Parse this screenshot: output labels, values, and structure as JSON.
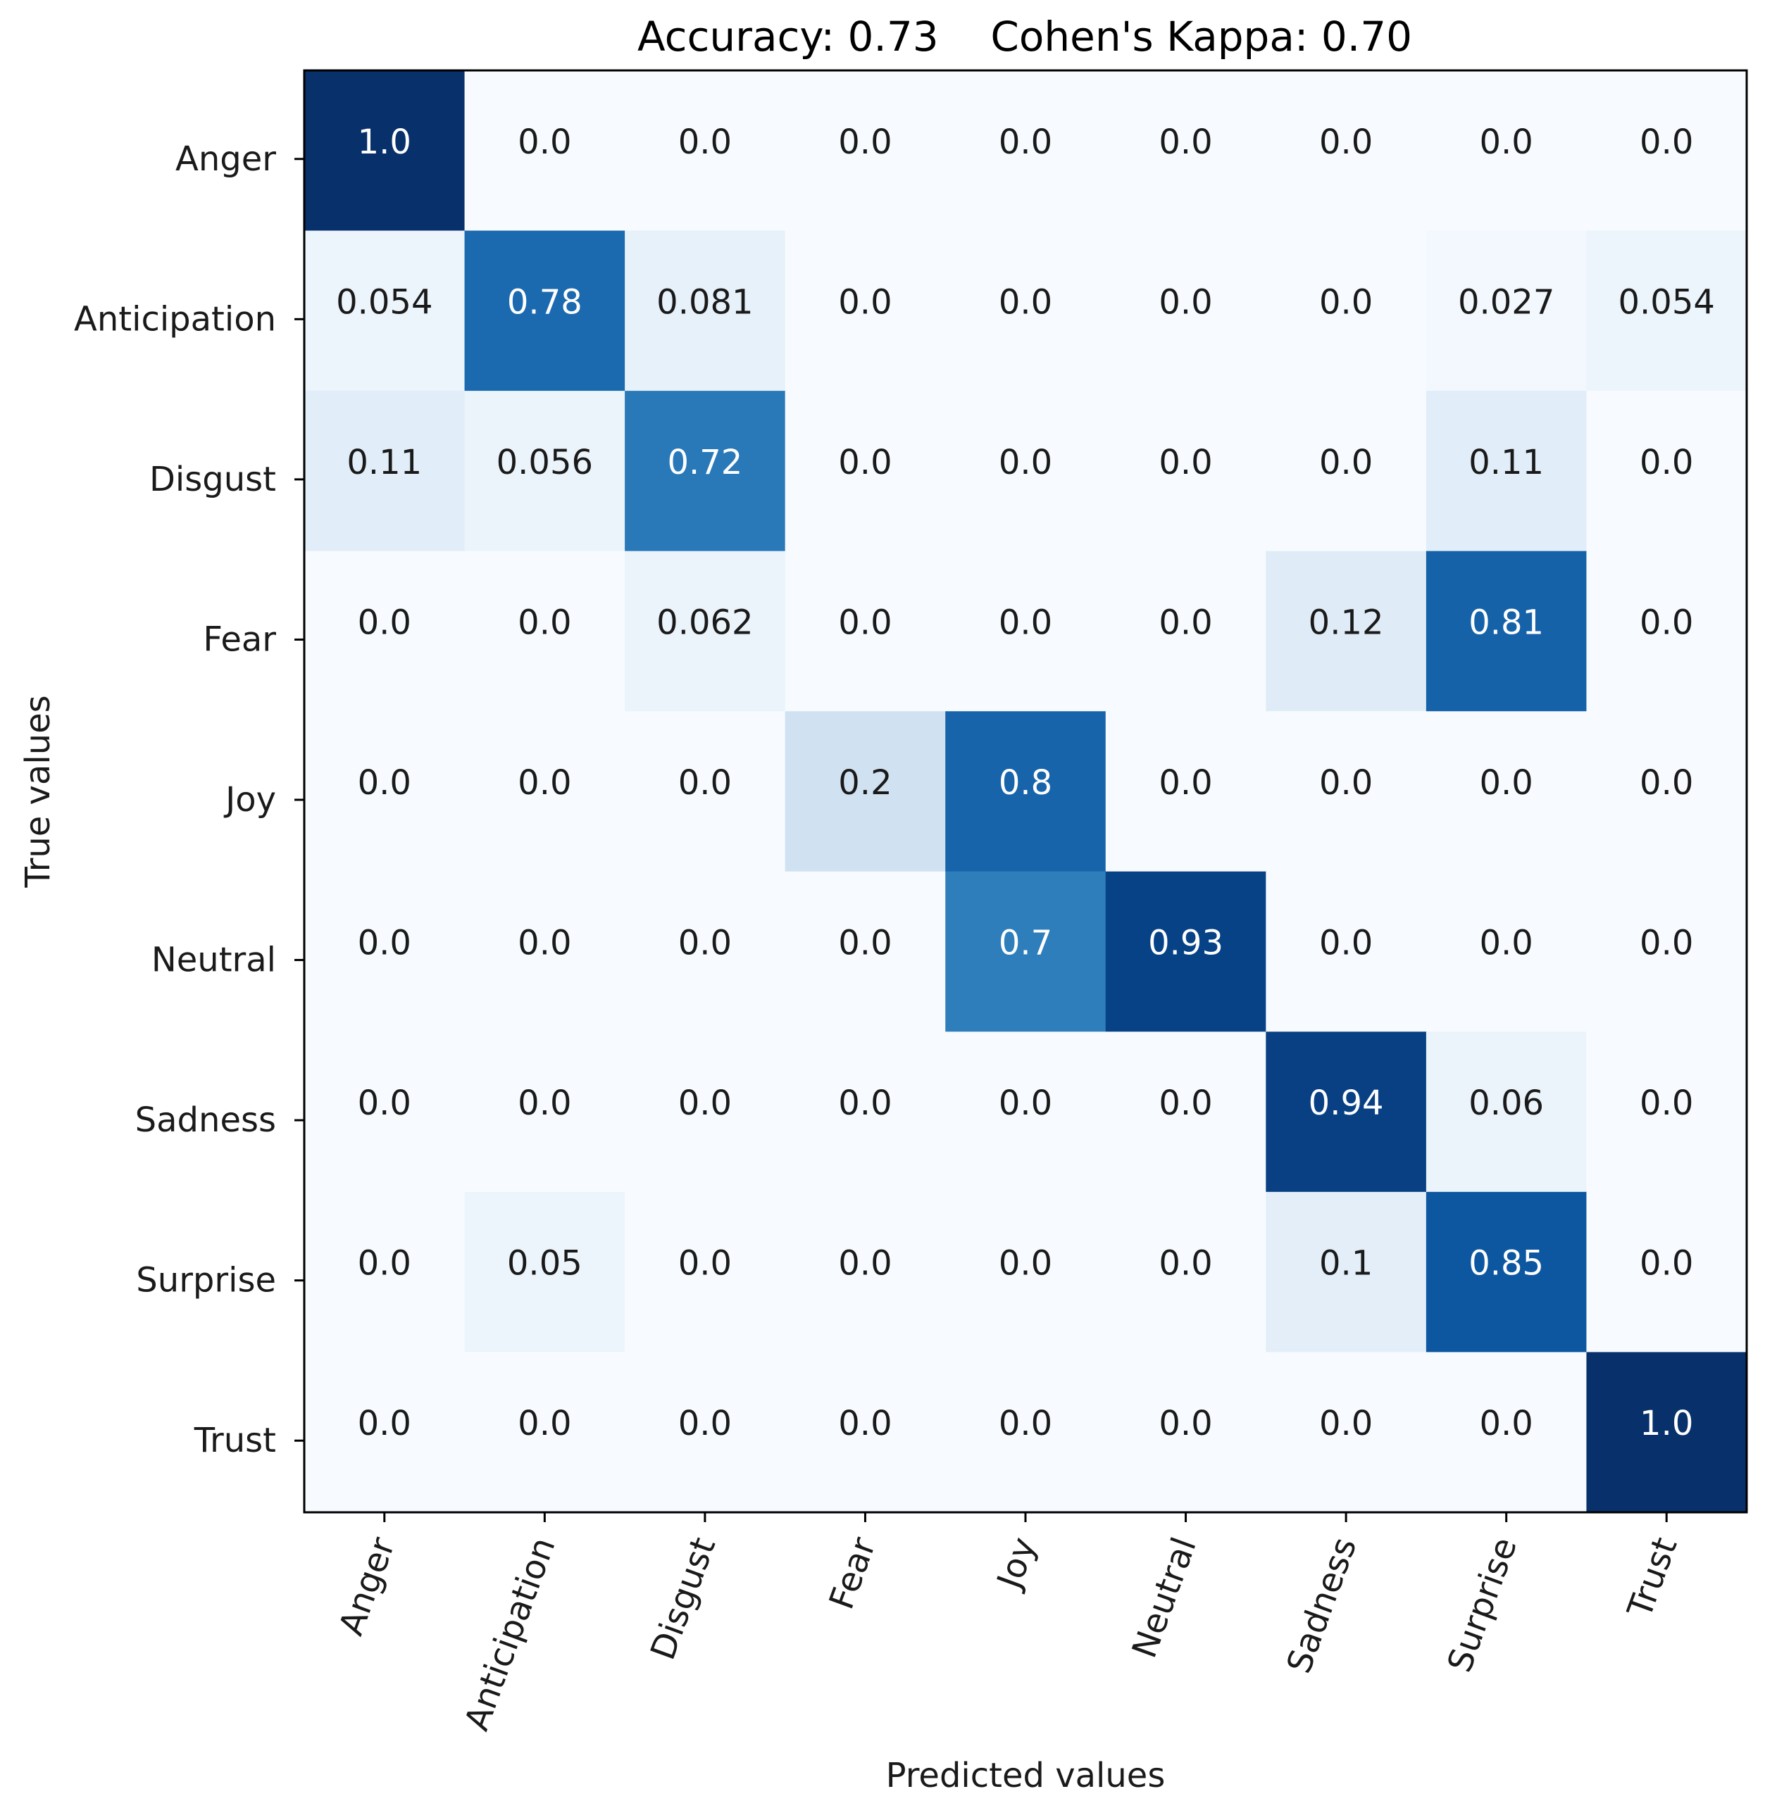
{
  "chart_data": {
    "type": "heatmap",
    "title": "Accuracy: 0.73    Cohen's Kappa: 0.70",
    "xlabel": "Predicted values",
    "ylabel": "True values",
    "x_categories": [
      "Anger",
      "Anticipation",
      "Disgust",
      "Fear",
      "Joy",
      "Neutral",
      "Sadness",
      "Surprise",
      "Trust"
    ],
    "y_categories": [
      "Anger",
      "Anticipation",
      "Disgust",
      "Fear",
      "Joy",
      "Neutral",
      "Sadness",
      "Surprise",
      "Trust"
    ],
    "values": [
      [
        "1.0",
        "0.0",
        "0.0",
        "0.0",
        "0.0",
        "0.0",
        "0.0",
        "0.0",
        "0.0"
      ],
      [
        "0.054",
        "0.78",
        "0.081",
        "0.0",
        "0.0",
        "0.0",
        "0.0",
        "0.027",
        "0.054"
      ],
      [
        "0.11",
        "0.056",
        "0.72",
        "0.0",
        "0.0",
        "0.0",
        "0.0",
        "0.11",
        "0.0"
      ],
      [
        "0.0",
        "0.0",
        "0.062",
        "0.0",
        "0.0",
        "0.0",
        "0.12",
        "0.81",
        "0.0"
      ],
      [
        "0.0",
        "0.0",
        "0.0",
        "0.2",
        "0.8",
        "0.0",
        "0.0",
        "0.0",
        "0.0"
      ],
      [
        "0.0",
        "0.0",
        "0.0",
        "0.0",
        "0.7",
        "0.93",
        "0.0",
        "0.0",
        "0.0"
      ],
      [
        "0.0",
        "0.0",
        "0.0",
        "0.0",
        "0.0",
        "0.0",
        "0.94",
        "0.06",
        "0.0"
      ],
      [
        "0.0",
        "0.05",
        "0.0",
        "0.0",
        "0.0",
        "0.0",
        "0.1",
        "0.85",
        "0.0"
      ],
      [
        "0.0",
        "0.0",
        "0.0",
        "0.0",
        "0.0",
        "0.0",
        "0.0",
        "0.0",
        "1.0"
      ]
    ],
    "colormap": "Blues",
    "color_range": [
      0,
      1
    ],
    "grid": false,
    "colorbar": false
  },
  "colors": {
    "low": "#f7fbff",
    "high": "#08306b",
    "text_dark": "#1a1a1a",
    "text_light": "#ffffff",
    "axis": "#000000"
  }
}
